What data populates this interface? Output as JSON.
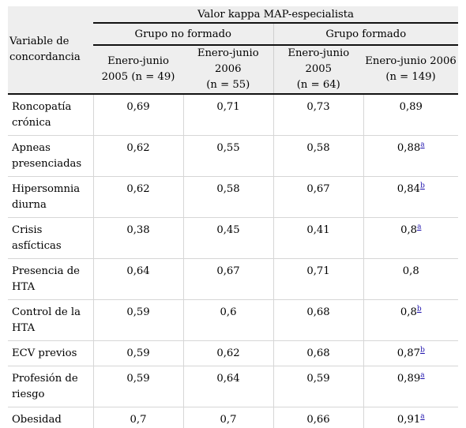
{
  "header": {
    "top": "Valor kappa MAP-especialista",
    "variable_line1": "Variable de",
    "variable_line2": "concordancia",
    "group1": "Grupo no formado",
    "group2": "Grupo formado",
    "periods": [
      {
        "line1": "Enero-junio",
        "line2": "2005 (n = 49)"
      },
      {
        "line1": "Enero-junio 2006",
        "line2": "(n = 55)"
      },
      {
        "line1": "Enero-junio 2005",
        "line2": "(n = 64)"
      },
      {
        "line1": "Enero-junio 2006",
        "line2": "(n = 149)"
      }
    ]
  },
  "rows": [
    {
      "name1": "Roncopatía",
      "name2": "crónica",
      "v1": "0,69",
      "v2": "0,71",
      "v3": "0,73",
      "v4": "0,89",
      "note": ""
    },
    {
      "name1": "Apneas",
      "name2": "presenciadas",
      "v1": "0,62",
      "v2": "0,55",
      "v3": "0,58",
      "v4": "0,88",
      "note": "a"
    },
    {
      "name1": "Hipersomnia",
      "name2": "diurna",
      "v1": "0,62",
      "v2": "0,58",
      "v3": "0,67",
      "v4": "0,84",
      "note": "b"
    },
    {
      "name1": "Crisis",
      "name2": "asfícticas",
      "v1": "0,38",
      "v2": "0,45",
      "v3": "0,41",
      "v4": "0,8",
      "note": "a"
    },
    {
      "name1": "Presencia de",
      "name2": "HTA",
      "v1": "0,64",
      "v2": "0,67",
      "v3": "0,71",
      "v4": "0,8",
      "note": ""
    },
    {
      "name1": "Control de la",
      "name2": "HTA",
      "v1": "0,59",
      "v2": "0,6",
      "v3": "0,68",
      "v4": "0,8",
      "note": "b"
    },
    {
      "name1": "ECV previos",
      "name2": "",
      "v1": "0,59",
      "v2": "0,62",
      "v3": "0,68",
      "v4": "0,87",
      "note": "b"
    },
    {
      "name1": "Profesión de",
      "name2": "riesgo",
      "v1": "0,59",
      "v2": "0,64",
      "v3": "0,59",
      "v4": "0,89",
      "note": "a"
    },
    {
      "name1": "Obesidad",
      "name2": "",
      "v1": "0,7",
      "v2": "0,7",
      "v3": "0,66",
      "v4": "0,91",
      "note": "a"
    }
  ]
}
